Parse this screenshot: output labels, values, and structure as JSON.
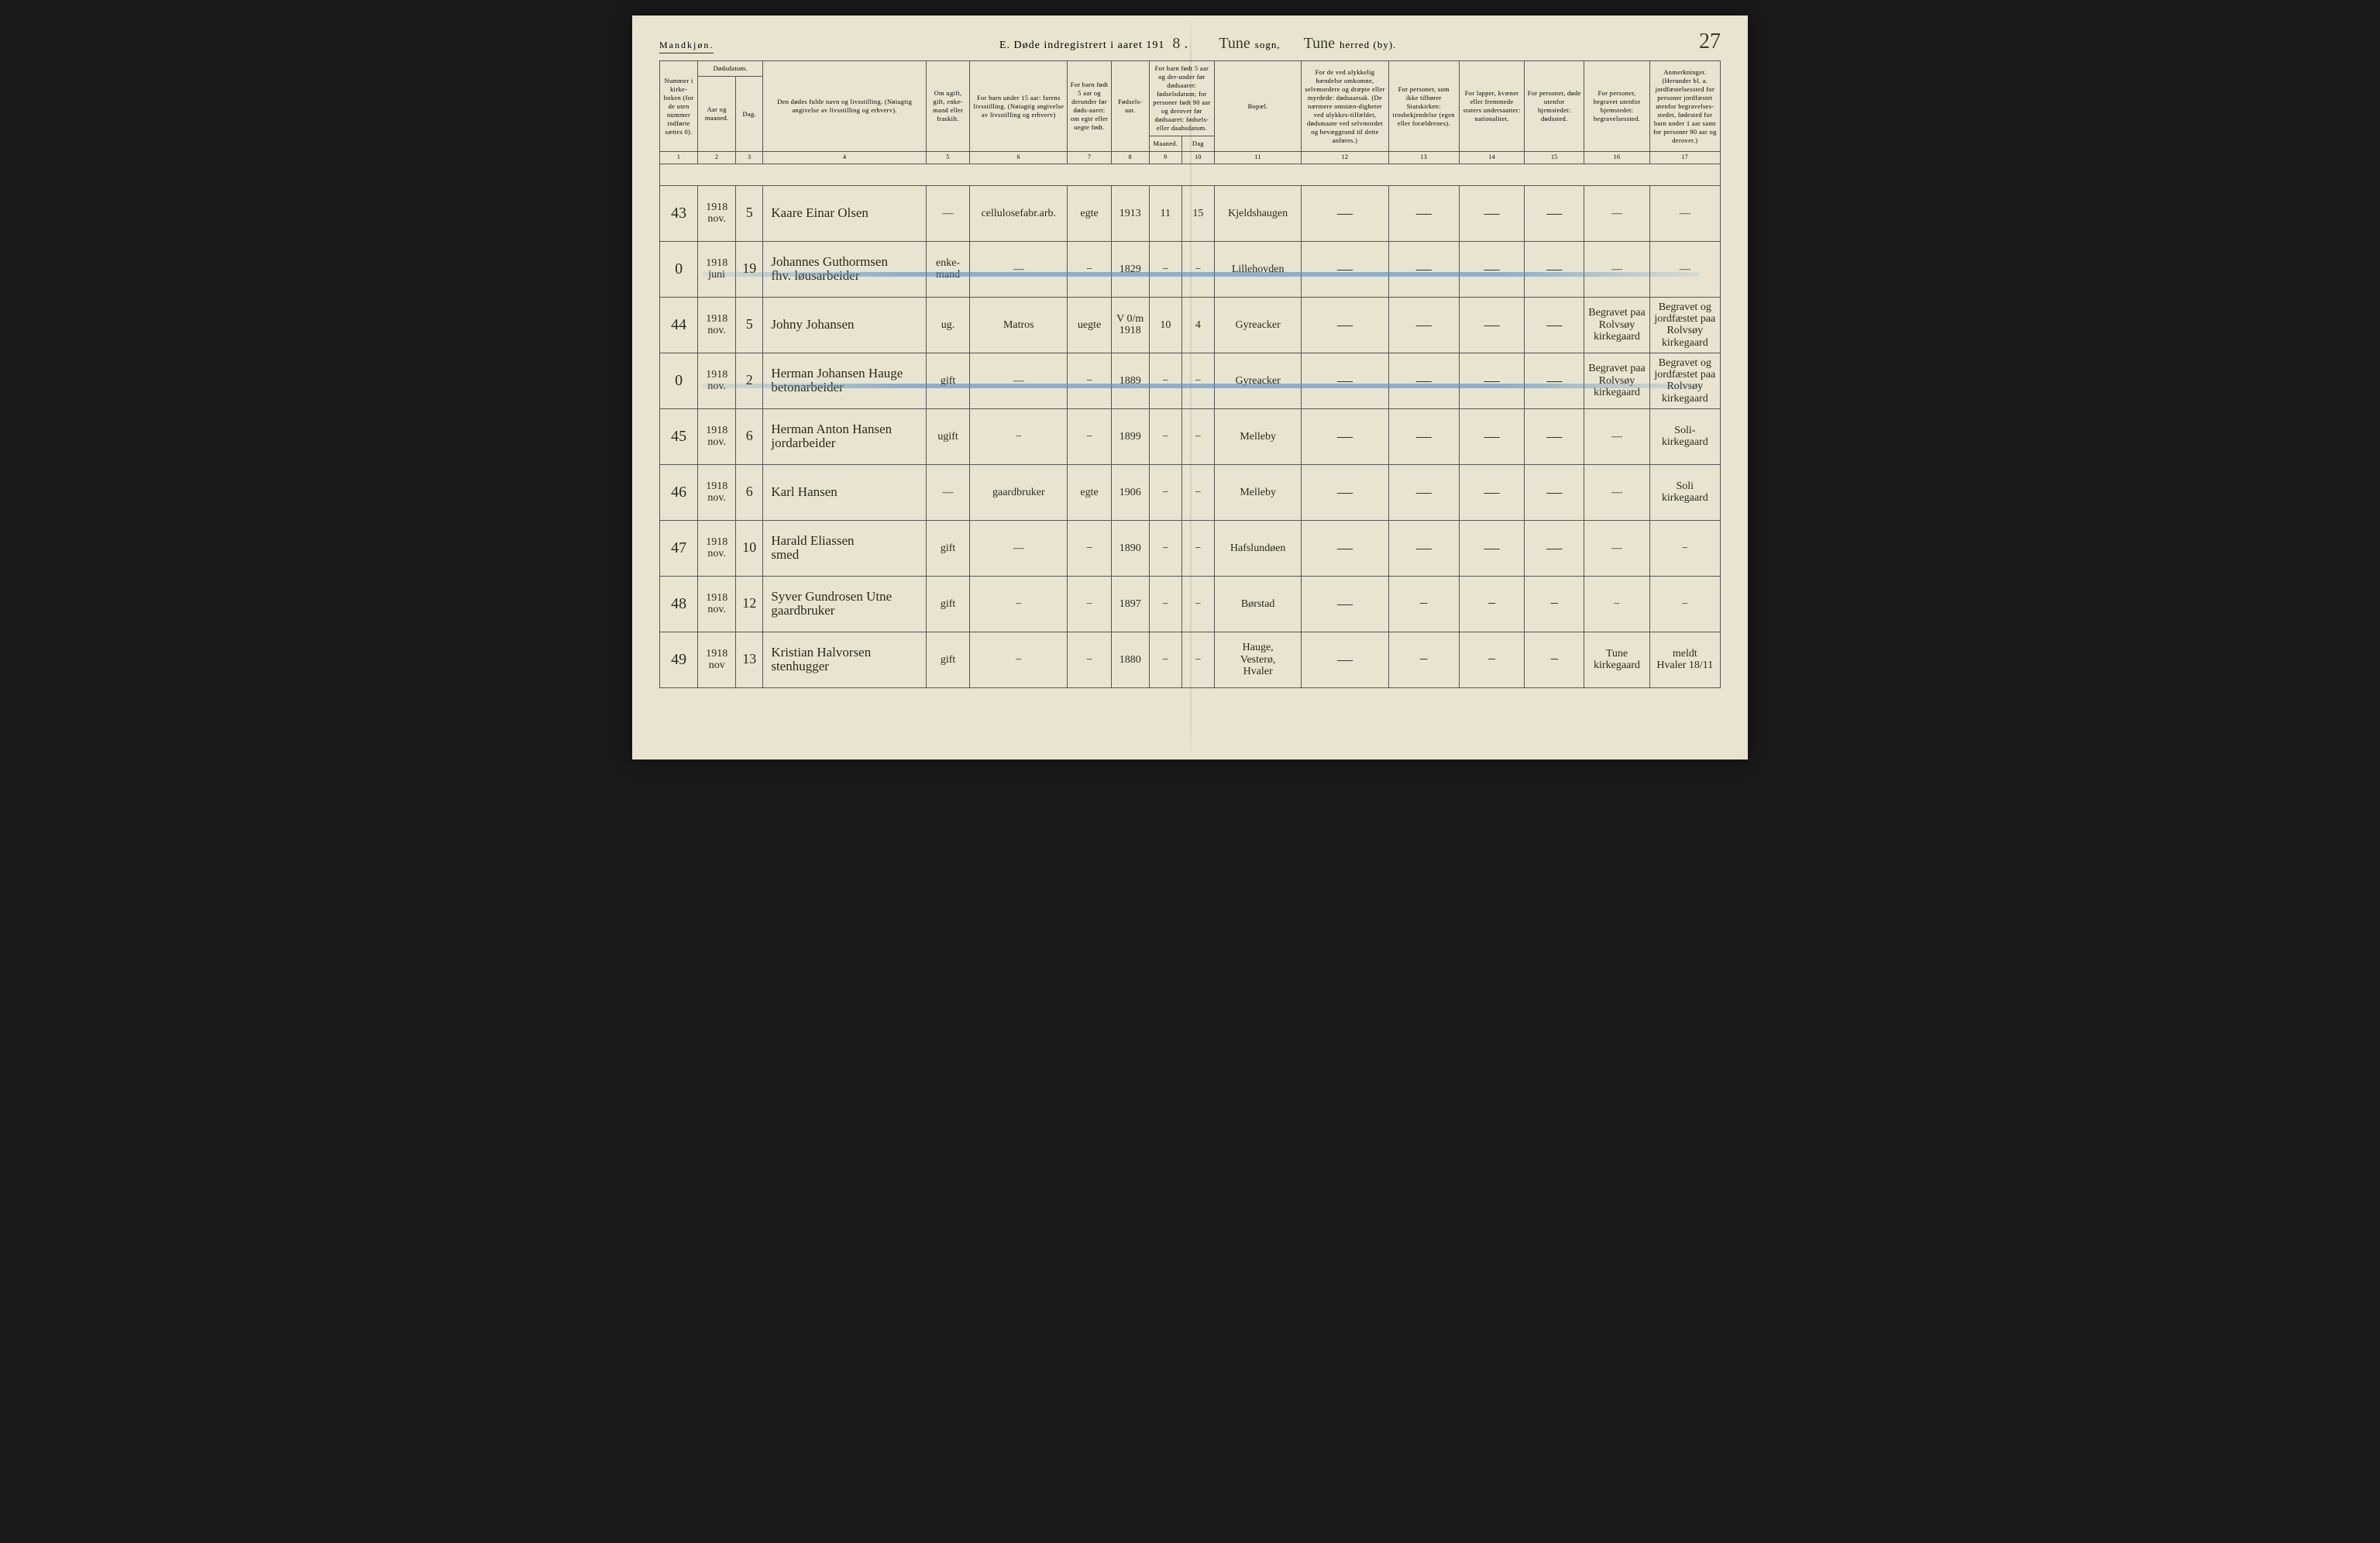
{
  "header": {
    "gender": "Mandkjøn.",
    "title_prefix": "E.   Døde indregistrert i aaret 191",
    "year_suffix": "8 .",
    "sogn_value": "Tune",
    "sogn_label": "sogn,",
    "herred_value": "Tune",
    "herred_label": "herred (by).",
    "page_number": "27"
  },
  "columns": {
    "h1": "Nummer i kirke-boken (for de uten nummer indførte sættes 0).",
    "h2": "Dødsdatum.",
    "h2a": "Aar og maaned.",
    "h2b": "Dag.",
    "h4": "Den dødes fulde navn og livsstilling.\n(Nøiagtig angivelse av livsstilling og erhverv).",
    "h5": "Om ugift, gift, enke-mand eller fraskilt.",
    "h6": "For barn under 15 aar:\nfarens livsstilling.\n(Nøiagtig angivelse av livsstilling og erhverv)",
    "h7": "For barn født 5 aar og derunder før døds-aaret:\nom egte eller uegte født.",
    "h8": "Fødsels-aar.",
    "h9_10": "For barn født 5 aar og der-under før dødsaaret:\nfødselsdatum;\nfor personer født 90 aar og derover før dødsaaret:\nfødsels- eller daabsdatum.",
    "h9": "Maaned.",
    "h10": "Dag",
    "h11": "Bopæl.",
    "h12": "For de ved ulykkelig hændelse omkomne, selvmordere og dræpte eller myrdede:\ndødsaarsak.\n(De nærmere omstæn-digheter ved ulykkes-tilfældet, dødsmaate ved selvmordet og bevæggrund til dette anføres.)",
    "h13": "For personer, som ikke tilhører Statskirken:\ntrosbekjendelse\n(egen eller forældrenes).",
    "h14": "For lapper, kvæner eller fremmede staters undersaatter:\nnationalitet.",
    "h15": "For personer, døde utenfor hjemstedet:\ndødssted.",
    "h16": "For personer, begravet utenfor hjemstedet:\nbegravelsessted.",
    "h17": "Anmerkninger.\n(Herunder bl. a. jordfæstelsessted for personer jordfæstet utenfor begravelses-stedet, fødested for barn under 1 aar samt for personer 90 aar og derover.)",
    "nums": [
      "1",
      "2",
      "3",
      "4",
      "5",
      "6",
      "7",
      "8",
      "9",
      "10",
      "11",
      "12",
      "13",
      "14",
      "15",
      "16",
      "17"
    ]
  },
  "rows": [
    {
      "num": "43",
      "aar": "1918\nnov.",
      "dag": "5",
      "navn": "Kaare Einar Olsen",
      "stand": "—",
      "faren": "cellulosefabr.arb.",
      "egte": "egte",
      "faar": "1913",
      "fmnd": "11",
      "fdag": "15",
      "bopael": "Kjeldshaugen",
      "c12": "—",
      "c13": "—",
      "c14": "—",
      "c15": "—",
      "c16": "—",
      "c17": "—",
      "strike": false
    },
    {
      "num": "0",
      "aar": "1918\njuni",
      "dag": "19",
      "navn": "Johannes Guthormsen\nfhv. løusarbeider",
      "stand": "enke-\nmand",
      "faren": "—",
      "egte": "−",
      "faar": "1829",
      "fmnd": "−",
      "fdag": "−",
      "bopael": "Lillehovden",
      "c12": "—",
      "c13": "—",
      "c14": "—",
      "c15": "—",
      "c16": "—",
      "c17": "—",
      "strike": true
    },
    {
      "num": "44",
      "aar": "1918\nnov.",
      "dag": "5",
      "navn": "Johny Johansen",
      "stand": "ug.",
      "faren": "Matros",
      "egte": "uegte",
      "faar": "1918",
      "fmnd": "10",
      "fdag": "4",
      "bopael": "Gyreacker",
      "c12": "—",
      "c13": "—",
      "c14": "—",
      "c15": "—",
      "c16": "Begravet paa Rolvsøy kirkegaard",
      "c17": "Begravet og jordfæstet paa Rolvsøy kirkegaard",
      "strike": false,
      "volm": "V 0/m"
    },
    {
      "num": "0",
      "aar": "1918\nnov.",
      "dag": "2",
      "navn": "Herman Johansen Hauge\nbetonarbeider",
      "stand": "gift",
      "faren": "—",
      "egte": "−",
      "faar": "1889",
      "fmnd": "−",
      "fdag": "−",
      "bopael": "Gyreacker",
      "c12": "—",
      "c13": "—",
      "c14": "—",
      "c15": "—",
      "c16": "Begravet paa Rolvsøy kirkegaard",
      "c17": "Begravet og jordfæstet paa Rolvsøy kirkegaard",
      "strike": true
    },
    {
      "num": "45",
      "aar": "1918\nnov.",
      "dag": "6",
      "navn": "Herman Anton Hansen\njordarbeider",
      "stand": "ugift",
      "faren": "−",
      "egte": "−",
      "faar": "1899",
      "fmnd": "−",
      "fdag": "−",
      "bopael": "Melleby",
      "c12": "—",
      "c13": "—",
      "c14": "—",
      "c15": "—",
      "c16": "—",
      "c17": "Soli-\nkirkegaard",
      "strike": false
    },
    {
      "num": "46",
      "aar": "1918\nnov.",
      "dag": "6",
      "navn": "Karl Hansen",
      "stand": "—",
      "faren": "gaardbruker",
      "egte": "egte",
      "faar": "1906",
      "fmnd": "−",
      "fdag": "−",
      "bopael": "Melleby",
      "c12": "—",
      "c13": "—",
      "c14": "—",
      "c15": "—",
      "c16": "—",
      "c17": "Soli\nkirkegaard",
      "strike": false
    },
    {
      "num": "47",
      "aar": "1918\nnov.",
      "dag": "10",
      "navn": "Harald Eliassen\nsmed",
      "stand": "gift",
      "faren": "—",
      "egte": "−",
      "faar": "1890",
      "fmnd": "−",
      "fdag": "−",
      "bopael": "Hafslundøen",
      "c12": "—",
      "c13": "—",
      "c14": "—",
      "c15": "—",
      "c16": "—",
      "c17": "−",
      "strike": false
    },
    {
      "num": "48",
      "aar": "1918\nnov.",
      "dag": "12",
      "navn": "Syver Gundrosen Utne\ngaardbruker",
      "stand": "gift",
      "faren": "−",
      "egte": "−",
      "faar": "1897",
      "fmnd": "−",
      "fdag": "−",
      "bopael": "Børstad",
      "c12": "—",
      "c13": "−",
      "c14": "−",
      "c15": "−",
      "c16": "−",
      "c17": "−",
      "strike": false
    },
    {
      "num": "49",
      "aar": "1918\nnov",
      "dag": "13",
      "navn": "Kristian Halvorsen\nstenhugger",
      "stand": "gift",
      "faren": "−",
      "egte": "−",
      "faar": "1880",
      "fmnd": "−",
      "fdag": "−",
      "bopael": "Hauge,\nVesterø,\nHvaler",
      "c12": "—",
      "c13": "−",
      "c14": "−",
      "c15": "−",
      "c16": "Tune\nkirkegaard",
      "c17": "meldt\nHvaler 18/11",
      "strike": false
    }
  ],
  "style": {
    "paper_bg": "#e8e4d0",
    "ink": "#2a2a1a",
    "border": "#555",
    "blue_pencil": "rgba(80,140,200,0.6)",
    "header_font_size_pt": 10,
    "body_font_size_pt": 14,
    "title_font_size_pt": 11
  }
}
